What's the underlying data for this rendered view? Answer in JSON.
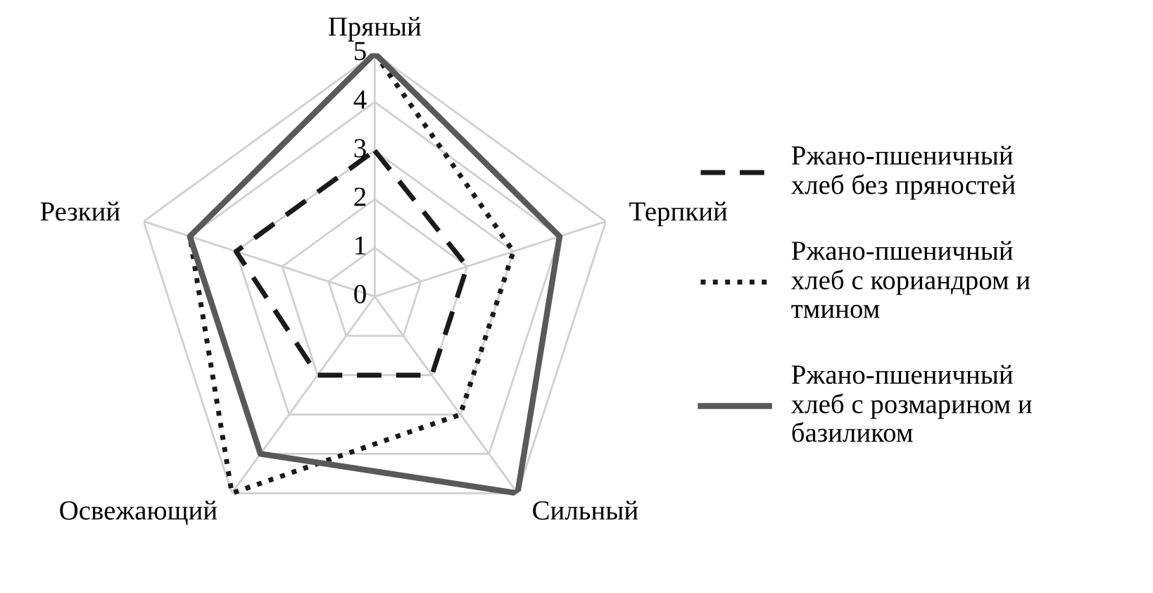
{
  "chart_data": {
    "type": "radar",
    "categories": [
      "Пряный",
      "Терпкий",
      "Сильный",
      "Освежающий",
      "Резкий"
    ],
    "ylim": [
      0,
      5
    ],
    "yticks": [
      0,
      1,
      2,
      3,
      4,
      5
    ],
    "grid": true,
    "legend": "right",
    "marker": "none",
    "series": [
      {
        "name": "Ржано-пшеничный\nхлеб без пряностей",
        "color": "#1a1a1a",
        "line_style": "dashed",
        "values": [
          3,
          2,
          2,
          2,
          3
        ]
      },
      {
        "name": "Ржано-пшеничный\nхлеб с кориандром и\nтмином",
        "color": "#1a1a1a",
        "line_style": "dotted",
        "values": [
          5,
          3,
          3,
          5,
          4
        ]
      },
      {
        "name": "Ржано-пшеничный\nхлеб с розмарином и\nбазиликом",
        "color": "#595959",
        "line_style": "solid",
        "values": [
          5,
          4,
          5,
          4,
          4
        ]
      }
    ]
  }
}
